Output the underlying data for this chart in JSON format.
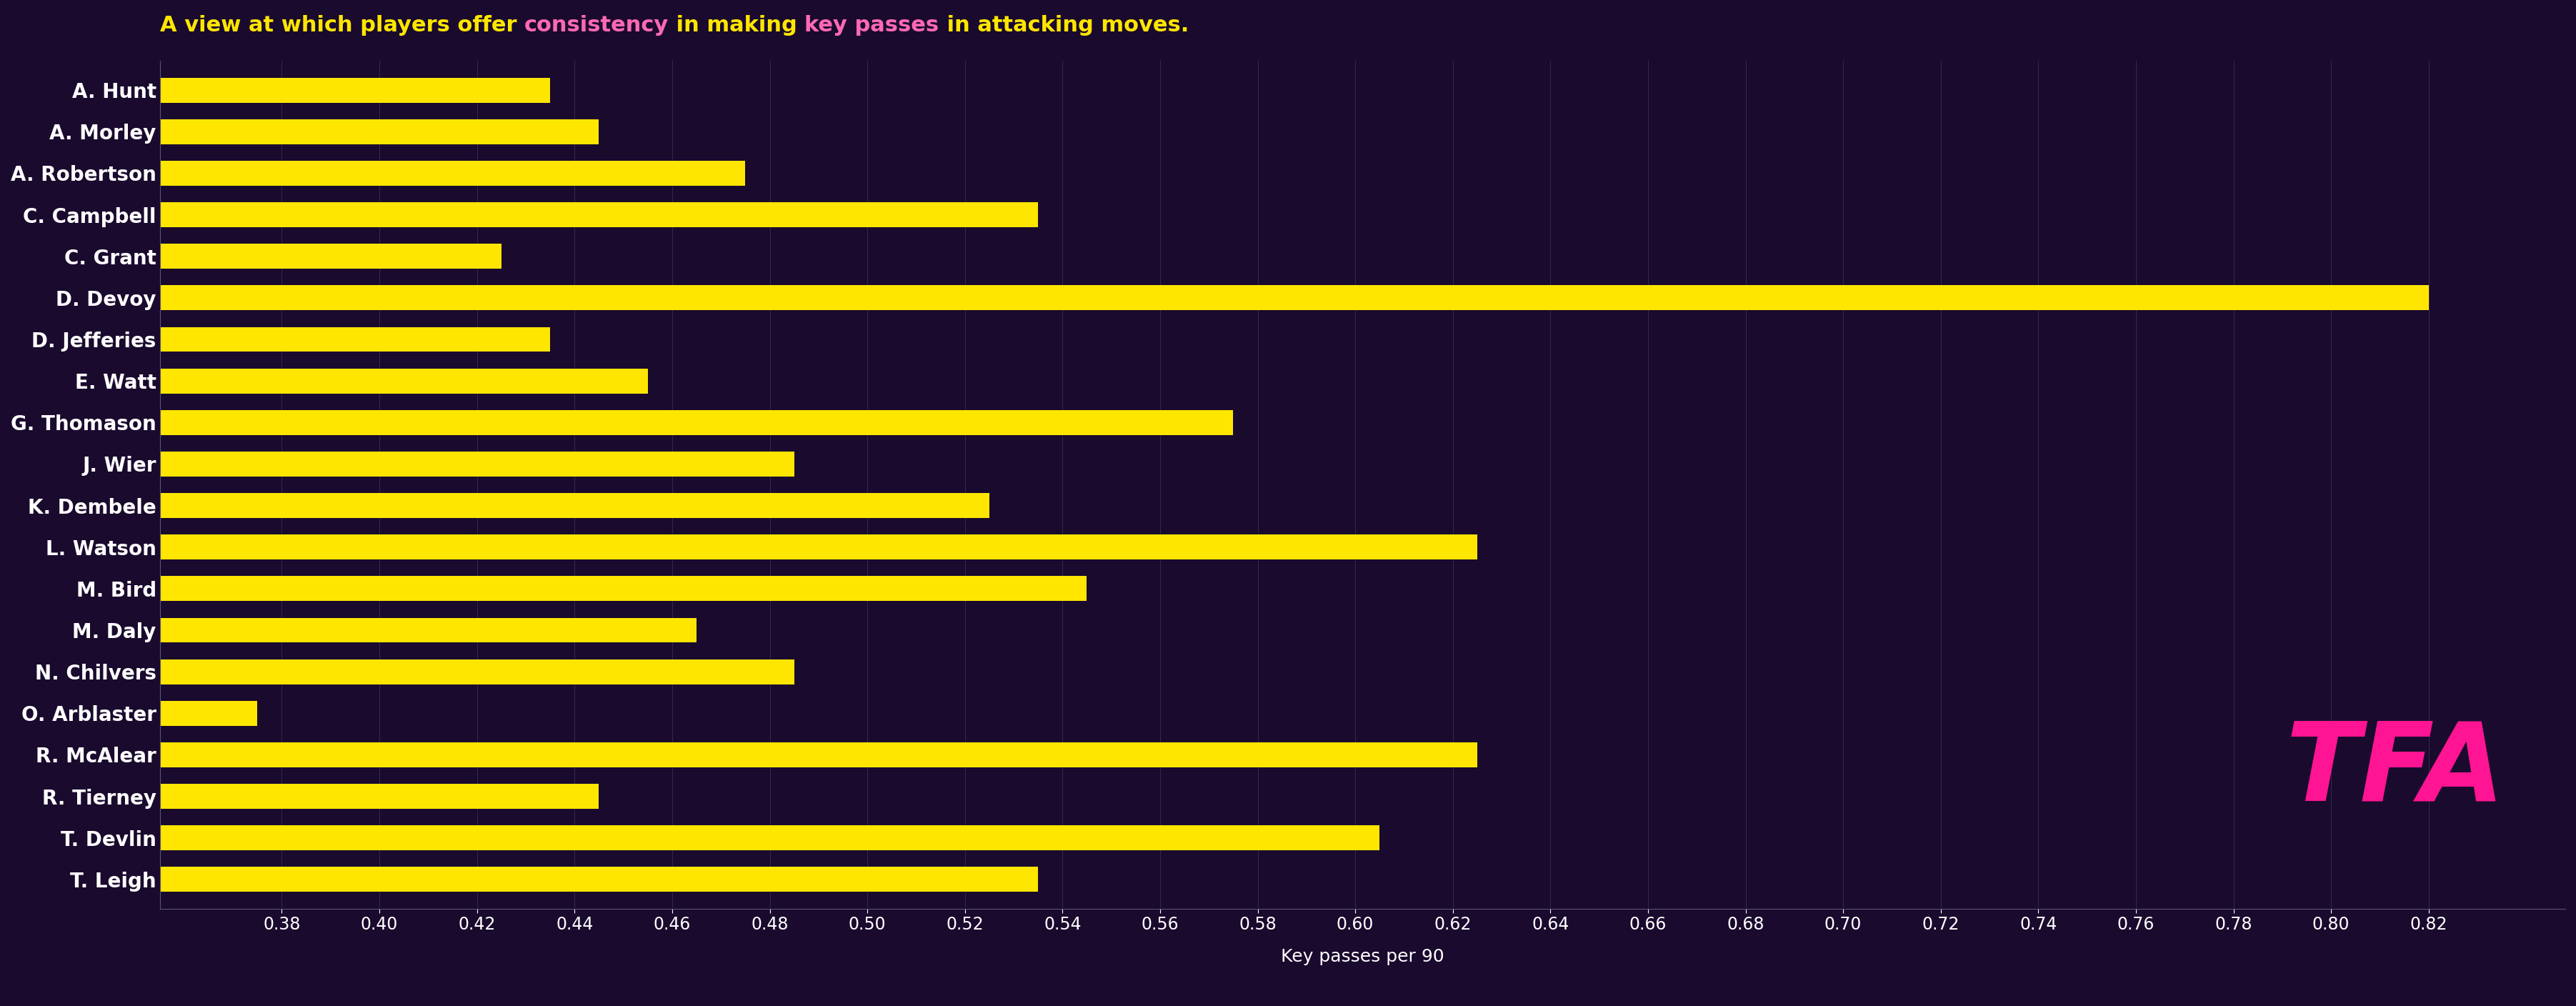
{
  "title_parts": [
    {
      "text": "A view at which players offer ",
      "color": "#FFE600"
    },
    {
      "text": "consistency",
      "color": "#FF69B4"
    },
    {
      "text": " in making ",
      "color": "#FFE600"
    },
    {
      "text": "key passes",
      "color": "#FF69B4"
    },
    {
      "text": " in attacking moves.",
      "color": "#FFE600"
    }
  ],
  "players": [
    "A. Hunt",
    "A. Morley",
    "A. Robertson",
    "C. Campbell",
    "C. Grant",
    "D. Devoy",
    "D. Jefferies",
    "E. Watt",
    "G. Thomason",
    "J. Wier",
    "K. Dembele",
    "L. Watson",
    "M. Bird",
    "M. Daly",
    "N. Chilvers",
    "O. Arblaster",
    "R. McAlear",
    "R. Tierney",
    "T. Devlin",
    "T. Leigh"
  ],
  "values": [
    0.435,
    0.445,
    0.475,
    0.535,
    0.425,
    0.82,
    0.435,
    0.455,
    0.575,
    0.485,
    0.525,
    0.625,
    0.545,
    0.465,
    0.485,
    0.375,
    0.625,
    0.445,
    0.605,
    0.535
  ],
  "bar_color": "#FFE600",
  "background_color": "#1a0a2e",
  "text_color": "#FFFFFF",
  "xlabel": "Key passes per 90",
  "xlim_left": 0.355,
  "xlim_right": 0.848,
  "xticks": [
    0.38,
    0.4,
    0.42,
    0.44,
    0.46,
    0.48,
    0.5,
    0.52,
    0.54,
    0.56,
    0.58,
    0.6,
    0.62,
    0.64,
    0.66,
    0.68,
    0.7,
    0.72,
    0.74,
    0.76,
    0.78,
    0.8,
    0.82
  ],
  "watermark": "TFA",
  "watermark_color": "#FF1493",
  "title_fontsize": 22,
  "label_fontsize": 20,
  "tick_fontsize": 17,
  "xlabel_fontsize": 18
}
